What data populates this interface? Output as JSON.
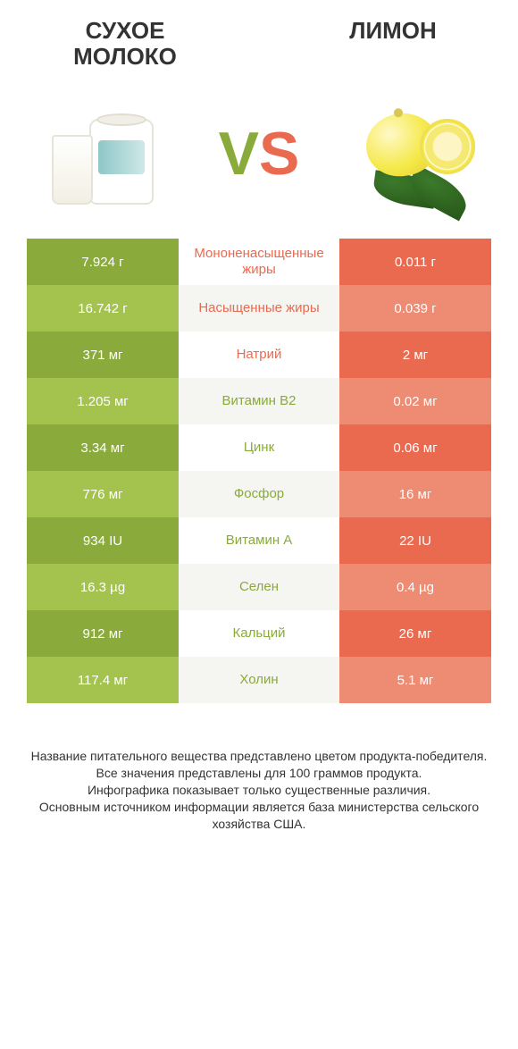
{
  "colors": {
    "green_dark": "#8aaa3b",
    "green_light": "#a4c24e",
    "orange_dark": "#e96a4f",
    "orange_light": "#ee8b73",
    "mid_bg_a": "#ffffff",
    "mid_bg_b": "#f5f5f2",
    "mid_text_orange": "#e96a4f",
    "mid_text_green": "#8aaa3b",
    "footer_text": "#333333"
  },
  "typography": {
    "title_fontsize": 26,
    "vs_fontsize": 68,
    "cell_fontsize": 15,
    "footer_fontsize": 14
  },
  "header": {
    "left_title": "СУХОЕ МОЛОКО",
    "right_title": "ЛИМОН",
    "vs_v": "V",
    "vs_s": "S"
  },
  "table": {
    "rows": [
      {
        "left": "7.924 г",
        "mid": "Мононенасыщенные жиры",
        "right": "0.011 г",
        "mid_color": "orange"
      },
      {
        "left": "16.742 г",
        "mid": "Насыщенные жиры",
        "right": "0.039 г",
        "mid_color": "orange"
      },
      {
        "left": "371 мг",
        "mid": "Натрий",
        "right": "2 мг",
        "mid_color": "orange"
      },
      {
        "left": "1.205 мг",
        "mid": "Витамин B2",
        "right": "0.02 мг",
        "mid_color": "green"
      },
      {
        "left": "3.34 мг",
        "mid": "Цинк",
        "right": "0.06 мг",
        "mid_color": "green"
      },
      {
        "left": "776 мг",
        "mid": "Фосфор",
        "right": "16 мг",
        "mid_color": "green"
      },
      {
        "left": "934 IU",
        "mid": "Витамин A",
        "right": "22 IU",
        "mid_color": "green"
      },
      {
        "left": "16.3 µg",
        "mid": "Селен",
        "right": "0.4 µg",
        "mid_color": "green"
      },
      {
        "left": "912 мг",
        "mid": "Кальций",
        "right": "26 мг",
        "mid_color": "green"
      },
      {
        "left": "117.4 мг",
        "mid": "Холин",
        "right": "5.1 мг",
        "mid_color": "green"
      }
    ]
  },
  "footer": {
    "line1": "Название питательного вещества представлено цветом продукта-победителя.",
    "line2": "Все значения представлены для 100 граммов продукта.",
    "line3": "Инфографика показывает только существенные различия.",
    "line4": "Основным источником информации является база министерства сельского хозяйства США."
  }
}
